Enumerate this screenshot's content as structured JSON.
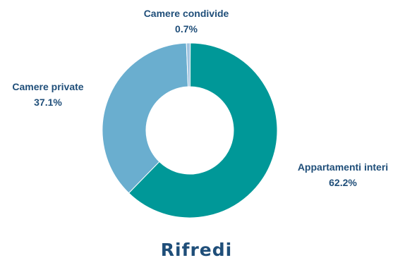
{
  "chart_data": {
    "type": "pie",
    "title": "Rifredi",
    "hole": true,
    "slices": [
      {
        "label": "Appartamenti interi",
        "value": 62.2,
        "value_label": "62.2%",
        "color": "#009898"
      },
      {
        "label": "Camere private",
        "value": 37.1,
        "value_label": "37.1%",
        "color": "#6aaecf"
      },
      {
        "label": "Camere condivide",
        "value": 0.7,
        "value_label": "0.7%",
        "color": "#9fc4e0"
      }
    ]
  }
}
